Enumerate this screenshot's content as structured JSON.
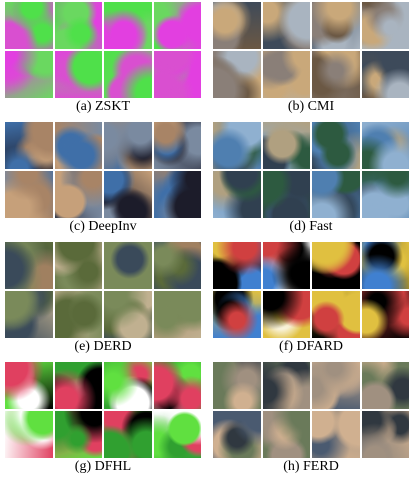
{
  "panels": [
    {
      "caption": "(a) ZSKT"
    },
    {
      "caption": "(b) CMI"
    },
    {
      "caption": "(c) DeepInv"
    },
    {
      "caption": "(d) Fast"
    },
    {
      "caption": "(e) DERD"
    },
    {
      "caption": "(f) DFARD"
    },
    {
      "caption": "(g) DFHL"
    },
    {
      "caption": "(h) FERD"
    }
  ]
}
